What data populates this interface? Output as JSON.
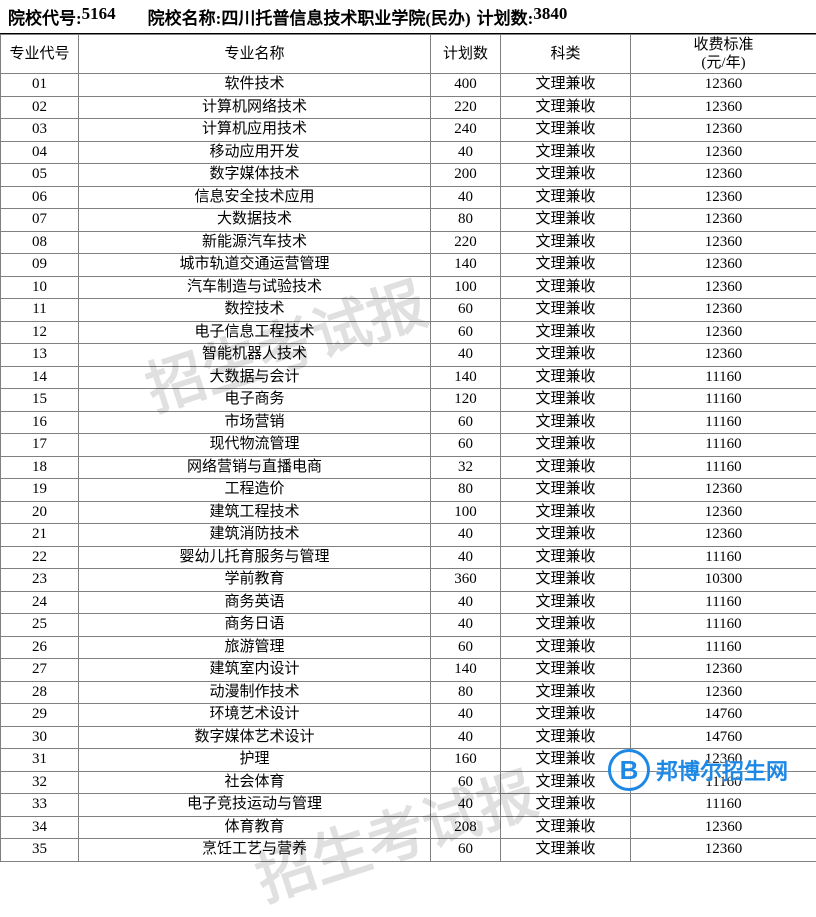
{
  "header": {
    "code_label": "院校代号:",
    "code_value": "5164",
    "name_label": "院校名称:",
    "name_value": "四川托普信息技术职业学院(民办)",
    "plan_label": "计划数:",
    "plan_value": "3840"
  },
  "table": {
    "columns": {
      "code": "专业代号",
      "name": "专业名称",
      "plan": "计划数",
      "type": "科类",
      "fee": "收费标准\n(元/年)"
    },
    "col_widths": {
      "code": 78,
      "name": 352,
      "plan": 70,
      "type": 130,
      "fee": 186
    },
    "header_fontsize": 15,
    "cell_fontsize": 15,
    "border_color": "#808080",
    "background_color": "#ffffff",
    "rows": [
      {
        "code": "01",
        "name": "软件技术",
        "plan": "400",
        "type": "文理兼收",
        "fee": "12360"
      },
      {
        "code": "02",
        "name": "计算机网络技术",
        "plan": "220",
        "type": "文理兼收",
        "fee": "12360"
      },
      {
        "code": "03",
        "name": "计算机应用技术",
        "plan": "240",
        "type": "文理兼收",
        "fee": "12360"
      },
      {
        "code": "04",
        "name": "移动应用开发",
        "plan": "40",
        "type": "文理兼收",
        "fee": "12360"
      },
      {
        "code": "05",
        "name": "数字媒体技术",
        "plan": "200",
        "type": "文理兼收",
        "fee": "12360"
      },
      {
        "code": "06",
        "name": "信息安全技术应用",
        "plan": "40",
        "type": "文理兼收",
        "fee": "12360"
      },
      {
        "code": "07",
        "name": "大数据技术",
        "plan": "80",
        "type": "文理兼收",
        "fee": "12360"
      },
      {
        "code": "08",
        "name": "新能源汽车技术",
        "plan": "220",
        "type": "文理兼收",
        "fee": "12360"
      },
      {
        "code": "09",
        "name": "城市轨道交通运营管理",
        "plan": "140",
        "type": "文理兼收",
        "fee": "12360"
      },
      {
        "code": "10",
        "name": "汽车制造与试验技术",
        "plan": "100",
        "type": "文理兼收",
        "fee": "12360"
      },
      {
        "code": "11",
        "name": "数控技术",
        "plan": "60",
        "type": "文理兼收",
        "fee": "12360"
      },
      {
        "code": "12",
        "name": "电子信息工程技术",
        "plan": "60",
        "type": "文理兼收",
        "fee": "12360"
      },
      {
        "code": "13",
        "name": "智能机器人技术",
        "plan": "40",
        "type": "文理兼收",
        "fee": "12360"
      },
      {
        "code": "14",
        "name": "大数据与会计",
        "plan": "140",
        "type": "文理兼收",
        "fee": "11160"
      },
      {
        "code": "15",
        "name": "电子商务",
        "plan": "120",
        "type": "文理兼收",
        "fee": "11160"
      },
      {
        "code": "16",
        "name": "市场营销",
        "plan": "60",
        "type": "文理兼收",
        "fee": "11160"
      },
      {
        "code": "17",
        "name": "现代物流管理",
        "plan": "60",
        "type": "文理兼收",
        "fee": "11160"
      },
      {
        "code": "18",
        "name": "网络营销与直播电商",
        "plan": "32",
        "type": "文理兼收",
        "fee": "11160"
      },
      {
        "code": "19",
        "name": "工程造价",
        "plan": "80",
        "type": "文理兼收",
        "fee": "12360"
      },
      {
        "code": "20",
        "name": "建筑工程技术",
        "plan": "100",
        "type": "文理兼收",
        "fee": "12360"
      },
      {
        "code": "21",
        "name": "建筑消防技术",
        "plan": "40",
        "type": "文理兼收",
        "fee": "12360"
      },
      {
        "code": "22",
        "name": "婴幼儿托育服务与管理",
        "plan": "40",
        "type": "文理兼收",
        "fee": "11160"
      },
      {
        "code": "23",
        "name": "学前教育",
        "plan": "360",
        "type": "文理兼收",
        "fee": "10300"
      },
      {
        "code": "24",
        "name": "商务英语",
        "plan": "40",
        "type": "文理兼收",
        "fee": "11160"
      },
      {
        "code": "25",
        "name": "商务日语",
        "plan": "40",
        "type": "文理兼收",
        "fee": "11160"
      },
      {
        "code": "26",
        "name": "旅游管理",
        "plan": "60",
        "type": "文理兼收",
        "fee": "11160"
      },
      {
        "code": "27",
        "name": "建筑室内设计",
        "plan": "140",
        "type": "文理兼收",
        "fee": "12360"
      },
      {
        "code": "28",
        "name": "动漫制作技术",
        "plan": "80",
        "type": "文理兼收",
        "fee": "12360"
      },
      {
        "code": "29",
        "name": "环境艺术设计",
        "plan": "40",
        "type": "文理兼收",
        "fee": "14760"
      },
      {
        "code": "30",
        "name": "数字媒体艺术设计",
        "plan": "40",
        "type": "文理兼收",
        "fee": "14760"
      },
      {
        "code": "31",
        "name": "护理",
        "plan": "160",
        "type": "文理兼收",
        "fee": "12360"
      },
      {
        "code": "32",
        "name": "社会体育",
        "plan": "60",
        "type": "文理兼收",
        "fee": "11160"
      },
      {
        "code": "33",
        "name": "电子竞技运动与管理",
        "plan": "40",
        "type": "文理兼收",
        "fee": "11160"
      },
      {
        "code": "34",
        "name": "体育教育",
        "plan": "208",
        "type": "文理兼收",
        "fee": "12360"
      },
      {
        "code": "35",
        "name": "烹饪工艺与营养",
        "plan": "60",
        "type": "文理兼收",
        "fee": "12360"
      }
    ]
  },
  "watermark": {
    "text": "招生考试报",
    "color": "rgba(0,0,0,0.12)",
    "fontsize": 58,
    "rotation": -18
  },
  "logo": {
    "letter": "B",
    "text": "邦博尔招生网",
    "color": "#1e88e5"
  }
}
